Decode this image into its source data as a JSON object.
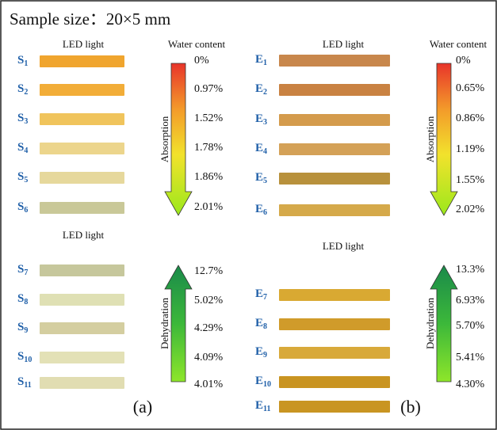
{
  "header": "Sample size：20×5 mm",
  "panels": [
    {
      "caption": "(a)",
      "groups": [
        {
          "light": "LED light",
          "column_title": "Water content",
          "arrow_label": "Absorption",
          "samples": [
            {
              "letter": "S",
              "index": "1",
              "water": "0%",
              "color": "#f0a52e"
            },
            {
              "letter": "S",
              "index": "2",
              "water": "0.97%",
              "color": "#f2ad38"
            },
            {
              "letter": "S",
              "index": "3",
              "water": "1.52%",
              "color": "#f0c45c"
            },
            {
              "letter": "S",
              "index": "4",
              "water": "1.78%",
              "color": "#ecd58c"
            },
            {
              "letter": "S",
              "index": "5",
              "water": "1.86%",
              "color": "#e6d89c"
            },
            {
              "letter": "S",
              "index": "6",
              "water": "2.01%",
              "color": "#c9c898"
            }
          ]
        },
        {
          "light": "LED light",
          "arrow_label": "Dehydration",
          "samples": [
            {
              "letter": "S",
              "index": "7",
              "water": "12.7%",
              "color": "#c6c79c"
            },
            {
              "letter": "S",
              "index": "8",
              "water": "5.02%",
              "color": "#dfe0b4"
            },
            {
              "letter": "S",
              "index": "9",
              "water": "4.29%",
              "color": "#d4cea0"
            },
            {
              "letter": "S",
              "index": "10",
              "water": "4.09%",
              "color": "#e3e1b6"
            },
            {
              "letter": "S",
              "index": "11",
              "water": "4.01%",
              "color": "#e1ddb2"
            }
          ]
        }
      ]
    },
    {
      "caption": "(b)",
      "groups": [
        {
          "light": "LED light",
          "column_title": "Water content",
          "arrow_label": "Absorption",
          "samples": [
            {
              "letter": "E",
              "index": "1",
              "water": "0%",
              "color": "#c8874c"
            },
            {
              "letter": "E",
              "index": "2",
              "water": "0.65%",
              "color": "#c98242"
            },
            {
              "letter": "E",
              "index": "3",
              "water": "0.86%",
              "color": "#d49b4c"
            },
            {
              "letter": "E",
              "index": "4",
              "water": "1.19%",
              "color": "#d4a157"
            },
            {
              "letter": "E",
              "index": "5",
              "water": "1.55%",
              "color": "#b8913c"
            },
            {
              "letter": "E",
              "index": "6",
              "water": "2.02%",
              "color": "#d5a94a"
            }
          ]
        },
        {
          "light": "LED light",
          "arrow_label": "Dehydration",
          "samples": [
            {
              "letter": "E",
              "index": "7",
              "water": "13.3%",
              "color": "#d9a932"
            },
            {
              "letter": "E",
              "index": "8",
              "water": "6.93%",
              "color": "#d09b2a"
            },
            {
              "letter": "E",
              "index": "9",
              "water": "5.70%",
              "color": "#d8a93a"
            },
            {
              "letter": "E",
              "index": "10",
              "water": "5.41%",
              "color": "#c99421"
            },
            {
              "letter": "E",
              "index": "11",
              "water": "4.30%",
              "color": "#c99522"
            }
          ]
        }
      ]
    }
  ]
}
